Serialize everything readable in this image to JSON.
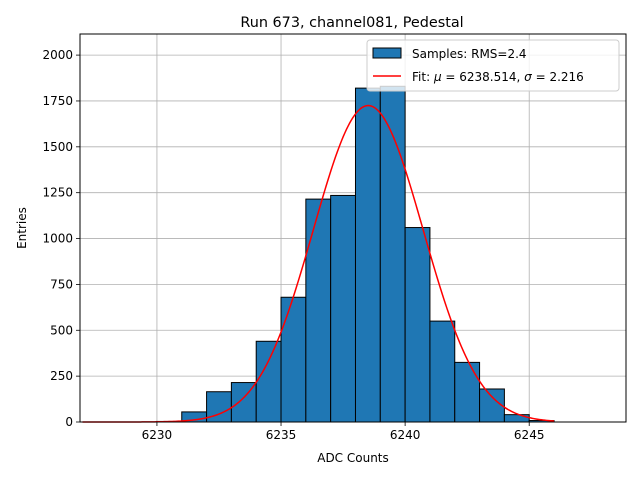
{
  "chart_data": {
    "type": "bar",
    "title": "Run 673, channel081, Pedestal",
    "xlabel": "ADC Counts",
    "ylabel": "Entries",
    "xlim": [
      6226.9,
      6248.9
    ],
    "ylim": [
      0,
      2115
    ],
    "grid": true,
    "xticks": [
      6230,
      6235,
      6240,
      6245
    ],
    "yticks": [
      0,
      250,
      500,
      750,
      1000,
      1250,
      1500,
      1750,
      2000
    ],
    "histogram": {
      "name": "Samples: RMS=2.4",
      "color": "#1f77b4",
      "edge_color": "#000000",
      "bins": [
        {
          "start": 6230,
          "end": 6231,
          "value": 3
        },
        {
          "start": 6231,
          "end": 6232,
          "value": 55
        },
        {
          "start": 6232,
          "end": 6233,
          "value": 165
        },
        {
          "start": 6233,
          "end": 6234,
          "value": 215
        },
        {
          "start": 6234,
          "end": 6235,
          "value": 440
        },
        {
          "start": 6235,
          "end": 6236,
          "value": 680
        },
        {
          "start": 6236,
          "end": 6237,
          "value": 1215
        },
        {
          "start": 6237,
          "end": 6238,
          "value": 1235
        },
        {
          "start": 6238,
          "end": 6239,
          "value": 1820
        },
        {
          "start": 6239,
          "end": 6240,
          "value": 1830
        },
        {
          "start": 6240,
          "end": 6241,
          "value": 1060
        },
        {
          "start": 6241,
          "end": 6242,
          "value": 550
        },
        {
          "start": 6242,
          "end": 6243,
          "value": 325
        },
        {
          "start": 6243,
          "end": 6244,
          "value": 180
        },
        {
          "start": 6244,
          "end": 6245,
          "value": 40
        },
        {
          "start": 6245,
          "end": 6246,
          "value": 8
        }
      ]
    },
    "fit": {
      "name": "Fit: μ = 6238.514, σ = 2.216",
      "label_prefix": "Fit: ",
      "mu_symbol": "μ",
      "mu_text": " = 6238.514, ",
      "sigma_symbol": "σ",
      "sigma_text": " = 2.216",
      "function": "gaussian",
      "mu": 6238.514,
      "sigma": 2.216,
      "amplitude": 1725,
      "x_range": [
        6227,
        6246
      ],
      "color": "#ff0000"
    },
    "legend_position": "top-right"
  }
}
